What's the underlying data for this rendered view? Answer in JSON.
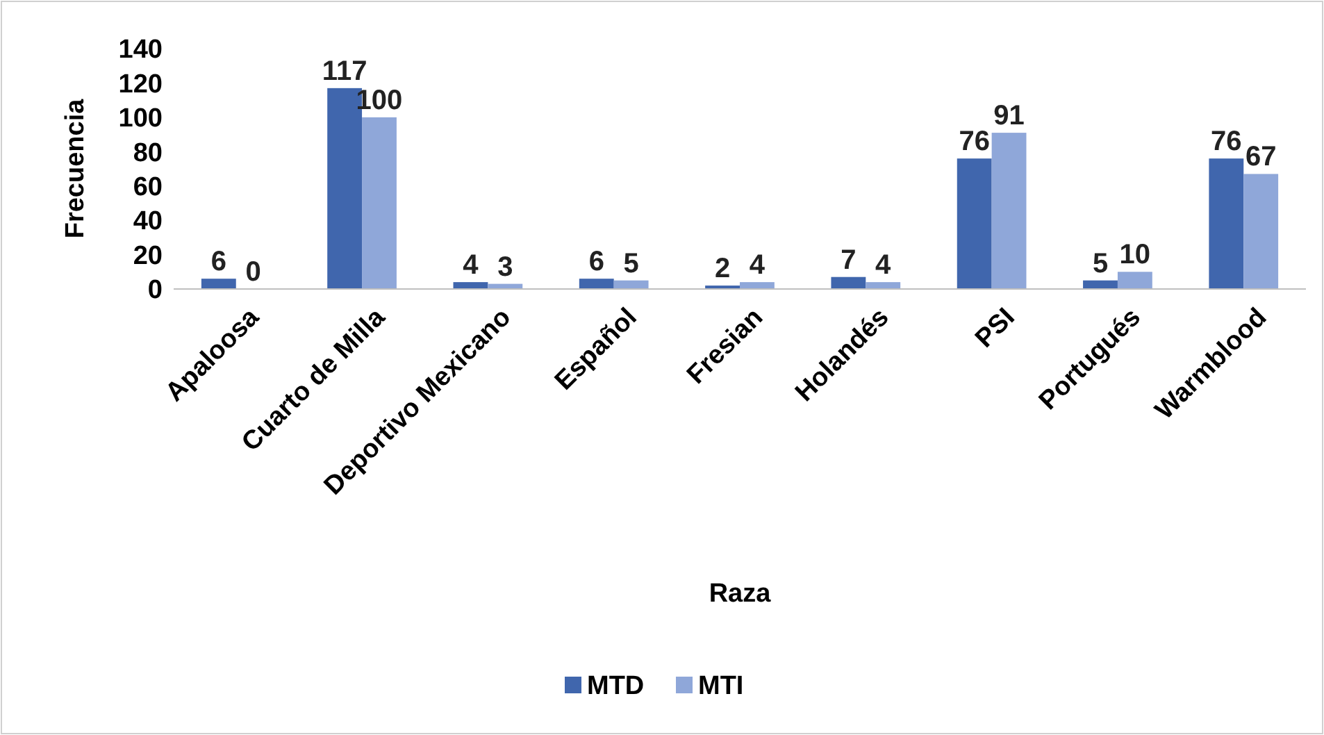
{
  "chart_data": {
    "type": "bar",
    "xlabel": "Raza",
    "ylabel": "Frecuencia",
    "categories": [
      "Apaloosa",
      "Cuarto de Milla",
      "Deportivo Mexicano",
      "Español",
      "Fresian",
      "Holandés",
      "PSI",
      "Portugués",
      "Warmblood"
    ],
    "series": [
      {
        "name": "MTD",
        "color": "#4066ad",
        "values": [
          6,
          117,
          4,
          6,
          2,
          7,
          76,
          5,
          76
        ]
      },
      {
        "name": "MTI",
        "color": "#8fa7d9",
        "values": [
          0,
          100,
          3,
          5,
          4,
          4,
          91,
          10,
          67
        ]
      }
    ],
    "ylim": [
      0,
      140
    ],
    "yticks": [
      0,
      20,
      40,
      60,
      80,
      100,
      120,
      140
    ],
    "data_labels": true,
    "legend": "bottom",
    "grid": false
  }
}
